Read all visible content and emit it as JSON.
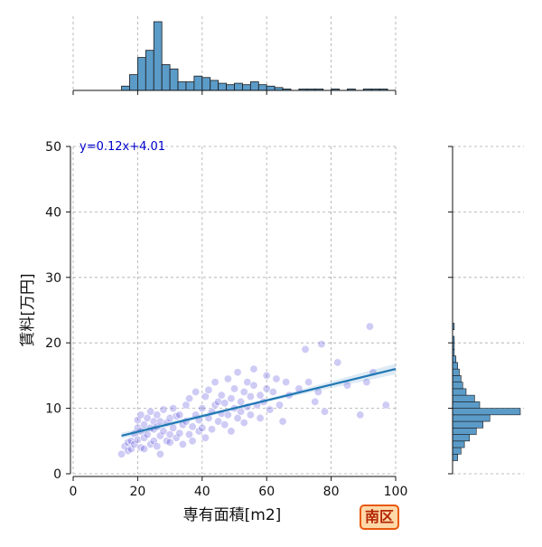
{
  "chart_data": {
    "type": "scatter",
    "title": "",
    "xlabel": "専有面積[m2]",
    "ylabel": "賃料[万円]",
    "xlim": [
      0,
      100
    ],
    "ylim": [
      0,
      50
    ],
    "xticks": [
      0,
      20,
      40,
      60,
      80,
      100
    ],
    "yticks": [
      0,
      10,
      20,
      30,
      40,
      50
    ],
    "grid": true,
    "annotation": "y=0.12x+4.01",
    "badge": "南区",
    "colors": {
      "points": "#3a2fd6",
      "line": "#1f77b4",
      "hist": "#5b9bc8",
      "badge_border": "#e8590c",
      "badge_fill": "#ffd8a8",
      "badge_text": "#b32400",
      "annotation": "#0000cc"
    },
    "regression": {
      "slope": 0.12,
      "intercept": 4.01,
      "x_range": [
        15,
        100
      ]
    },
    "points": [
      [
        15,
        3.0
      ],
      [
        16,
        4.2
      ],
      [
        17,
        3.5
      ],
      [
        17,
        4.8
      ],
      [
        18,
        5.0
      ],
      [
        18,
        3.8
      ],
      [
        19,
        4.5
      ],
      [
        19,
        6.1
      ],
      [
        20,
        5.2
      ],
      [
        20,
        7.0
      ],
      [
        20,
        8.2
      ],
      [
        21,
        4.0
      ],
      [
        21,
        6.5
      ],
      [
        21,
        9.0
      ],
      [
        22,
        5.5
      ],
      [
        22,
        7.5
      ],
      [
        22,
        3.8
      ],
      [
        23,
        6.0
      ],
      [
        23,
        8.5
      ],
      [
        24,
        4.5
      ],
      [
        24,
        7.0
      ],
      [
        24,
        9.5
      ],
      [
        25,
        5.0
      ],
      [
        25,
        6.8
      ],
      [
        25,
        8.0
      ],
      [
        26,
        4.2
      ],
      [
        26,
        7.2
      ],
      [
        26,
        9.0
      ],
      [
        27,
        5.8
      ],
      [
        27,
        8.0
      ],
      [
        27,
        3.0
      ],
      [
        28,
        6.5
      ],
      [
        28,
        9.8
      ],
      [
        29,
        5.0
      ],
      [
        29,
        7.8
      ],
      [
        30,
        6.0
      ],
      [
        30,
        8.5
      ],
      [
        30,
        4.8
      ],
      [
        31,
        7.0
      ],
      [
        31,
        10.0
      ],
      [
        32,
        5.5
      ],
      [
        32,
        8.8
      ],
      [
        33,
        6.2
      ],
      [
        33,
        9.0
      ],
      [
        34,
        4.5
      ],
      [
        34,
        7.5
      ],
      [
        35,
        8.0
      ],
      [
        35,
        10.5
      ],
      [
        36,
        6.0
      ],
      [
        36,
        11.5
      ],
      [
        37,
        7.2
      ],
      [
        37,
        5.0
      ],
      [
        38,
        9.0
      ],
      [
        38,
        12.5
      ],
      [
        39,
        6.5
      ],
      [
        39,
        8.2
      ],
      [
        40,
        10.0
      ],
      [
        40,
        7.0
      ],
      [
        41,
        11.8
      ],
      [
        41,
        5.5
      ],
      [
        42,
        8.5
      ],
      [
        42,
        12.8
      ],
      [
        43,
        9.5
      ],
      [
        43,
        6.8
      ],
      [
        44,
        10.5
      ],
      [
        44,
        14.0
      ],
      [
        45,
        8.0
      ],
      [
        45,
        11.0
      ],
      [
        46,
        9.2
      ],
      [
        46,
        12.0
      ],
      [
        47,
        7.5
      ],
      [
        47,
        10.8
      ],
      [
        48,
        9.0
      ],
      [
        48,
        14.5
      ],
      [
        49,
        11.5
      ],
      [
        49,
        6.5
      ],
      [
        50,
        10.0
      ],
      [
        50,
        13.0
      ],
      [
        51,
        8.5
      ],
      [
        51,
        15.5
      ],
      [
        52,
        11.0
      ],
      [
        52,
        9.5
      ],
      [
        53,
        12.5
      ],
      [
        53,
        7.8
      ],
      [
        54,
        10.2
      ],
      [
        54,
        14.0
      ],
      [
        55,
        11.8
      ],
      [
        55,
        9.0
      ],
      [
        56,
        13.5
      ],
      [
        56,
        16.0
      ],
      [
        57,
        10.5
      ],
      [
        58,
        12.0
      ],
      [
        58,
        8.5
      ],
      [
        59,
        11.0
      ],
      [
        60,
        13.0
      ],
      [
        60,
        15.0
      ],
      [
        61,
        9.8
      ],
      [
        62,
        12.5
      ],
      [
        63,
        14.5
      ],
      [
        64,
        10.5
      ],
      [
        65,
        8.0
      ],
      [
        66,
        14.0
      ],
      [
        67,
        12.0
      ],
      [
        70,
        13.0
      ],
      [
        72,
        19.0
      ],
      [
        73,
        14.0
      ],
      [
        75,
        11.0
      ],
      [
        76,
        12.5
      ],
      [
        77,
        19.8
      ],
      [
        78,
        9.5
      ],
      [
        82,
        17.0
      ],
      [
        85,
        13.5
      ],
      [
        89,
        9.0
      ],
      [
        91,
        14.0
      ],
      [
        92,
        22.5
      ],
      [
        93,
        15.5
      ],
      [
        97,
        10.5
      ]
    ],
    "x_histogram": {
      "bin_edges": [
        15,
        17.5,
        20,
        22.5,
        25,
        27.5,
        30,
        32.5,
        35,
        37.5,
        40,
        42.5,
        45,
        47.5,
        50,
        52.5,
        55,
        57.5,
        60,
        62.5,
        65,
        67.5,
        70,
        72.5,
        75,
        77.5,
        80,
        82.5,
        85,
        87.5,
        90,
        92.5,
        95,
        97.5
      ],
      "counts": [
        3,
        11,
        23,
        28,
        48,
        18,
        15,
        6,
        6,
        10,
        9,
        7,
        5,
        4,
        5,
        4,
        6,
        4,
        3,
        2,
        1,
        0,
        1,
        1,
        1,
        0,
        1,
        0,
        1,
        0,
        1,
        1,
        1
      ]
    },
    "y_histogram": {
      "bin_edges": [
        2,
        3,
        4,
        5,
        6,
        7,
        8,
        9,
        10,
        11,
        12,
        13,
        14,
        15,
        16,
        17,
        18,
        19,
        20,
        21,
        22,
        23
      ],
      "counts": [
        3,
        5,
        7,
        10,
        14,
        18,
        22,
        40,
        16,
        13,
        8,
        6,
        5,
        4,
        3,
        2,
        1,
        1,
        1,
        0,
        1
      ]
    }
  }
}
